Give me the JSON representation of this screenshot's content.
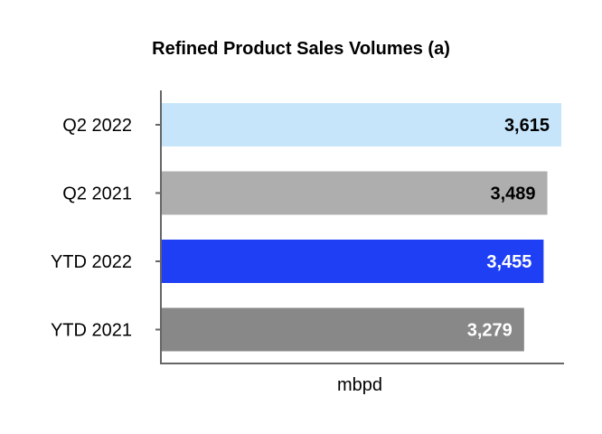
{
  "chart_data": {
    "type": "bar",
    "orientation": "horizontal",
    "title": "Refined Product Sales Volumes (a)",
    "xlabel": "mbpd",
    "ylabel": "",
    "categories": [
      "Q2 2022",
      "Q2 2021",
      "YTD 2022",
      "YTD 2021"
    ],
    "values": [
      3615,
      3489,
      3455,
      3279
    ],
    "value_labels": [
      "3,615",
      "3,489",
      "3,455",
      "3,279"
    ],
    "bar_colors": [
      "#c6e5fb",
      "#aeaeae",
      "#1f3ff5",
      "#888888"
    ],
    "label_colors": [
      "#000000",
      "#000000",
      "#ffffff",
      "#ffffff"
    ],
    "xlim": [
      0,
      3615
    ],
    "grid": false,
    "legend": "none"
  }
}
